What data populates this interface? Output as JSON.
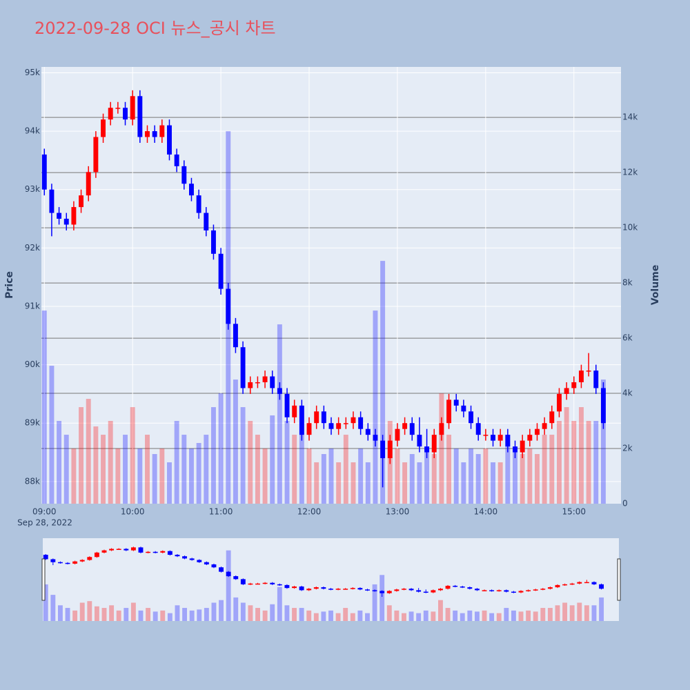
{
  "chart_data": {
    "type": "candlestick",
    "title": "2022-09-28 OCI 뉴스_공시 차트",
    "ylabel": "Price",
    "y2label": "Volume",
    "x_date_label": "Sep 28, 2022",
    "increasing_color": "#ff0000",
    "decreasing_color": "#0000ff",
    "grid": true,
    "rangeslider": true,
    "xlim": [
      "08:58",
      "15:32"
    ],
    "xticks": [
      "09:00",
      "10:00",
      "11:00",
      "12:00",
      "13:00",
      "14:00",
      "15:00"
    ],
    "ylim": [
      87620,
      95100
    ],
    "yticks": [
      {
        "value": 88000,
        "label": "88k"
      },
      {
        "value": 89000,
        "label": "89k"
      },
      {
        "value": 90000,
        "label": "90k"
      },
      {
        "value": 91000,
        "label": "91k"
      },
      {
        "value": 92000,
        "label": "92k"
      },
      {
        "value": 93000,
        "label": "93k"
      },
      {
        "value": 94000,
        "label": "94k"
      },
      {
        "value": 95000,
        "label": "95k"
      }
    ],
    "y2lim": [
      0,
      15830
    ],
    "y2ticks": [
      0,
      {
        "value": 2000,
        "label": "2k"
      },
      {
        "value": 4000,
        "label": "4k"
      },
      {
        "value": 6000,
        "label": "6k"
      },
      {
        "value": 8000,
        "label": "8k"
      },
      {
        "value": 10000,
        "label": "10k"
      },
      {
        "value": 12000,
        "label": "12k"
      },
      {
        "value": 14000,
        "label": "14k"
      }
    ],
    "x": [
      "09:00",
      "09:05",
      "09:10",
      "09:15",
      "09:20",
      "09:25",
      "09:30",
      "09:35",
      "09:40",
      "09:45",
      "09:50",
      "09:55",
      "10:00",
      "10:05",
      "10:10",
      "10:15",
      "10:20",
      "10:25",
      "10:30",
      "10:35",
      "10:40",
      "10:45",
      "10:50",
      "10:55",
      "11:00",
      "11:05",
      "11:10",
      "11:15",
      "11:20",
      "11:25",
      "11:30",
      "11:35",
      "11:40",
      "11:45",
      "11:50",
      "11:55",
      "12:00",
      "12:05",
      "12:10",
      "12:15",
      "12:20",
      "12:25",
      "12:30",
      "12:35",
      "12:40",
      "12:45",
      "12:50",
      "12:55",
      "13:00",
      "13:05",
      "13:10",
      "13:15",
      "13:20",
      "13:25",
      "13:30",
      "13:35",
      "13:40",
      "13:45",
      "13:50",
      "13:55",
      "14:00",
      "14:05",
      "14:10",
      "14:15",
      "14:20",
      "14:25",
      "14:30",
      "14:35",
      "14:40",
      "14:45",
      "14:50",
      "14:55",
      "15:00",
      "15:05",
      "15:10",
      "15:15",
      "15:20"
    ],
    "open": [
      93600,
      93000,
      92600,
      92500,
      92400,
      92700,
      92900,
      93300,
      93900,
      94200,
      94400,
      94400,
      94200,
      94600,
      93900,
      94000,
      93900,
      94100,
      93600,
      93400,
      93100,
      92900,
      92600,
      92300,
      91900,
      91300,
      90700,
      90300,
      89600,
      89700,
      89700,
      89800,
      89600,
      89500,
      89100,
      89300,
      88800,
      89000,
      89200,
      89000,
      88900,
      89000,
      89000,
      89100,
      88900,
      88800,
      88700,
      88400,
      88700,
      88900,
      89000,
      88800,
      88600,
      88500,
      88800,
      89000,
      89400,
      89300,
      89200,
      89000,
      88800,
      88800,
      88700,
      88800,
      88600,
      88500,
      88700,
      88800,
      88900,
      89000,
      89200,
      89500,
      89600,
      89700,
      89900,
      89900,
      89600
    ],
    "high": [
      93700,
      93100,
      92700,
      92600,
      92800,
      93000,
      93400,
      94000,
      94300,
      94500,
      94500,
      94500,
      94700,
      94700,
      94100,
      94100,
      94200,
      94200,
      93700,
      93500,
      93200,
      93000,
      92700,
      92400,
      92000,
      91400,
      90800,
      90400,
      89800,
      89800,
      89900,
      89900,
      89700,
      89600,
      89400,
      89400,
      89100,
      89300,
      89300,
      89100,
      89100,
      89100,
      89200,
      89200,
      89000,
      88900,
      88800,
      88800,
      89000,
      89100,
      89100,
      89100,
      88900,
      88900,
      89100,
      89500,
      89500,
      89400,
      89300,
      89100,
      88900,
      88900,
      88900,
      88900,
      88700,
      88800,
      88900,
      89000,
      89100,
      89300,
      89600,
      89700,
      89800,
      90000,
      90200,
      90000,
      89700
    ],
    "low": [
      92900,
      92200,
      92400,
      92300,
      92300,
      92600,
      92800,
      93200,
      93800,
      94100,
      94300,
      94100,
      94100,
      93800,
      93800,
      93800,
      93800,
      93500,
      93300,
      93000,
      92800,
      92500,
      92200,
      91800,
      91200,
      90600,
      90200,
      89500,
      89500,
      89600,
      89600,
      89500,
      89400,
      89000,
      89000,
      88700,
      88700,
      88900,
      88900,
      88800,
      88800,
      88900,
      88900,
      88800,
      88700,
      88600,
      87900,
      88300,
      88600,
      88800,
      88700,
      88500,
      88400,
      88400,
      88700,
      88900,
      89200,
      89100,
      88900,
      88700,
      88700,
      88600,
      88600,
      88500,
      88400,
      88400,
      88600,
      88700,
      88800,
      88900,
      89100,
      89400,
      89500,
      89600,
      89800,
      89500,
      88900
    ],
    "close": [
      93000,
      92600,
      92500,
      92400,
      92700,
      92900,
      93300,
      93900,
      94200,
      94400,
      94400,
      94200,
      94600,
      93900,
      94000,
      93900,
      94100,
      93600,
      93400,
      93100,
      92900,
      92600,
      92300,
      91900,
      91300,
      90700,
      90300,
      89600,
      89700,
      89700,
      89800,
      89600,
      89500,
      89100,
      89300,
      88800,
      89000,
      89200,
      89000,
      88900,
      89000,
      89000,
      89100,
      88900,
      88800,
      88700,
      88400,
      88700,
      88900,
      89000,
      88800,
      88600,
      88500,
      88800,
      89000,
      89400,
      89300,
      89200,
      89000,
      88800,
      88800,
      88700,
      88800,
      88600,
      88500,
      88700,
      88800,
      88900,
      89000,
      89200,
      89500,
      89600,
      89700,
      89900,
      89900,
      89600,
      89000
    ],
    "volume": [
      7000,
      5000,
      3000,
      2500,
      2000,
      3500,
      3800,
      2800,
      2500,
      3000,
      2000,
      2500,
      3500,
      2000,
      2500,
      1800,
      2000,
      1500,
      3000,
      2500,
      2000,
      2200,
      2500,
      3500,
      4000,
      13500,
      4500,
      3500,
      3000,
      2500,
      2000,
      3200,
      6500,
      3000,
      2500,
      2500,
      2000,
      1500,
      1800,
      2000,
      1500,
      2500,
      1500,
      2000,
      1500,
      7000,
      8800,
      3000,
      2000,
      1500,
      1800,
      1500,
      2000,
      1800,
      4000,
      2500,
      2000,
      1500,
      2000,
      1800,
      2000,
      1500,
      1500,
      2500,
      2000,
      1800,
      2000,
      1800,
      2500,
      2500,
      3000,
      3500,
      3000,
      3500,
      3000,
      3000,
      4500
    ]
  }
}
